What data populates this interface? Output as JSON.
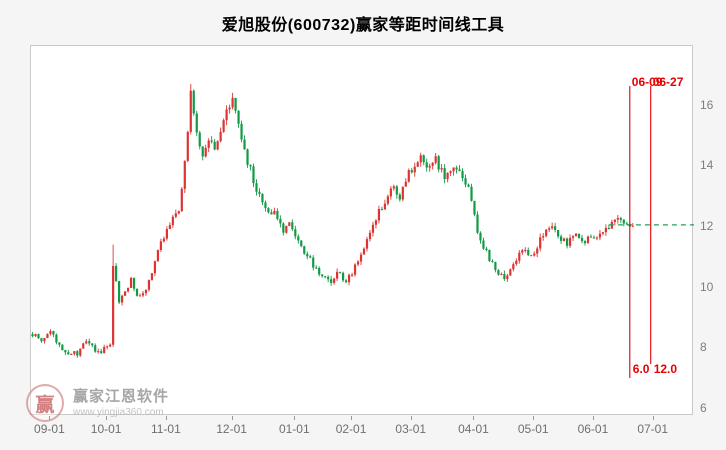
{
  "title": "爱旭股份(600732)赢家等距时间线工具",
  "watermark": {
    "logo_text": "赢",
    "name": "赢家江恩软件",
    "url": "www.yingjia360.com"
  },
  "chart_data": {
    "type": "candlestick",
    "title": "爱旭股份(600732)赢家等距时间线工具",
    "symbol": "600732",
    "stock_name": "爱旭股份",
    "ylim": [
      5.8,
      18.0
    ],
    "y_ticks": [
      6,
      8,
      10,
      12,
      14,
      16
    ],
    "x_ticks": [
      {
        "label": "09-01",
        "day": 6
      },
      {
        "label": "10-01",
        "day": 25
      },
      {
        "label": "11-01",
        "day": 45
      },
      {
        "label": "12-01",
        "day": 67
      },
      {
        "label": "01-01",
        "day": 88
      },
      {
        "label": "02-01",
        "day": 107
      },
      {
        "label": "03-01",
        "day": 127
      },
      {
        "label": "04-01",
        "day": 148
      },
      {
        "label": "05-01",
        "day": 168
      },
      {
        "label": "06-01",
        "day": 188
      },
      {
        "label": "07-01",
        "day": 208
      }
    ],
    "total_days": 222,
    "last_day": 201,
    "up_color": "#dd3333",
    "down_color": "#119944",
    "line_color": "#e60000",
    "level_line": {
      "price": 12.1,
      "color": "#22a055",
      "from_day": 193,
      "style": "dashed"
    },
    "time_lines": [
      {
        "day": 200,
        "date_label": "06-09",
        "price_label": "6.0"
      },
      {
        "day": 207,
        "date_label": "06-27",
        "price_label": "12.0"
      }
    ],
    "wick_overrides": [
      {
        "day": 27,
        "high": 11.45
      },
      {
        "day": 53,
        "high": 16.75
      }
    ],
    "anchors": [
      [
        0,
        8.5
      ],
      [
        3,
        8.3
      ],
      [
        6,
        8.55
      ],
      [
        9,
        8.1
      ],
      [
        12,
        7.9
      ],
      [
        15,
        7.85
      ],
      [
        18,
        8.25
      ],
      [
        22,
        7.9
      ],
      [
        25,
        8.05
      ],
      [
        26,
        8.1
      ],
      [
        27,
        10.8
      ],
      [
        29,
        9.5
      ],
      [
        31,
        9.9
      ],
      [
        33,
        10.3
      ],
      [
        35,
        9.7
      ],
      [
        37,
        9.9
      ],
      [
        39,
        10.2
      ],
      [
        41,
        10.9
      ],
      [
        43,
        11.5
      ],
      [
        45,
        11.9
      ],
      [
        47,
        12.3
      ],
      [
        49,
        12.6
      ],
      [
        51,
        14.2
      ],
      [
        53,
        16.4
      ],
      [
        55,
        15.2
      ],
      [
        57,
        14.4
      ],
      [
        59,
        15.0
      ],
      [
        61,
        14.5
      ],
      [
        63,
        15.2
      ],
      [
        65,
        15.9
      ],
      [
        67,
        16.15
      ],
      [
        69,
        15.3
      ],
      [
        71,
        14.5
      ],
      [
        73,
        13.9
      ],
      [
        75,
        13.3
      ],
      [
        78,
        12.7
      ],
      [
        81,
        12.5
      ],
      [
        84,
        11.95
      ],
      [
        86,
        12.15
      ],
      [
        88,
        11.7
      ],
      [
        91,
        11.15
      ],
      [
        94,
        10.8
      ],
      [
        97,
        10.45
      ],
      [
        100,
        10.15
      ],
      [
        102,
        10.55
      ],
      [
        105,
        10.25
      ],
      [
        107,
        10.5
      ],
      [
        110,
        11.2
      ],
      [
        113,
        11.85
      ],
      [
        116,
        12.5
      ],
      [
        119,
        13.1
      ],
      [
        121,
        13.4
      ],
      [
        123,
        13.0
      ],
      [
        125,
        13.6
      ],
      [
        127,
        13.95
      ],
      [
        130,
        14.3
      ],
      [
        132,
        13.9
      ],
      [
        135,
        14.25
      ],
      [
        138,
        13.7
      ],
      [
        141,
        14.1
      ],
      [
        144,
        13.6
      ],
      [
        146,
        13.3
      ],
      [
        148,
        12.35
      ],
      [
        150,
        11.55
      ],
      [
        153,
        11.0
      ],
      [
        156,
        10.5
      ],
      [
        159,
        10.35
      ],
      [
        162,
        11.0
      ],
      [
        165,
        11.3
      ],
      [
        167,
        11.1
      ],
      [
        168,
        11.25
      ],
      [
        171,
        11.8
      ],
      [
        174,
        12.0
      ],
      [
        176,
        11.65
      ],
      [
        179,
        11.5
      ],
      [
        182,
        11.85
      ],
      [
        185,
        11.6
      ],
      [
        188,
        11.65
      ],
      [
        191,
        11.95
      ],
      [
        194,
        12.1
      ],
      [
        197,
        12.3
      ],
      [
        199,
        12.05
      ],
      [
        201,
        12.15
      ]
    ]
  }
}
